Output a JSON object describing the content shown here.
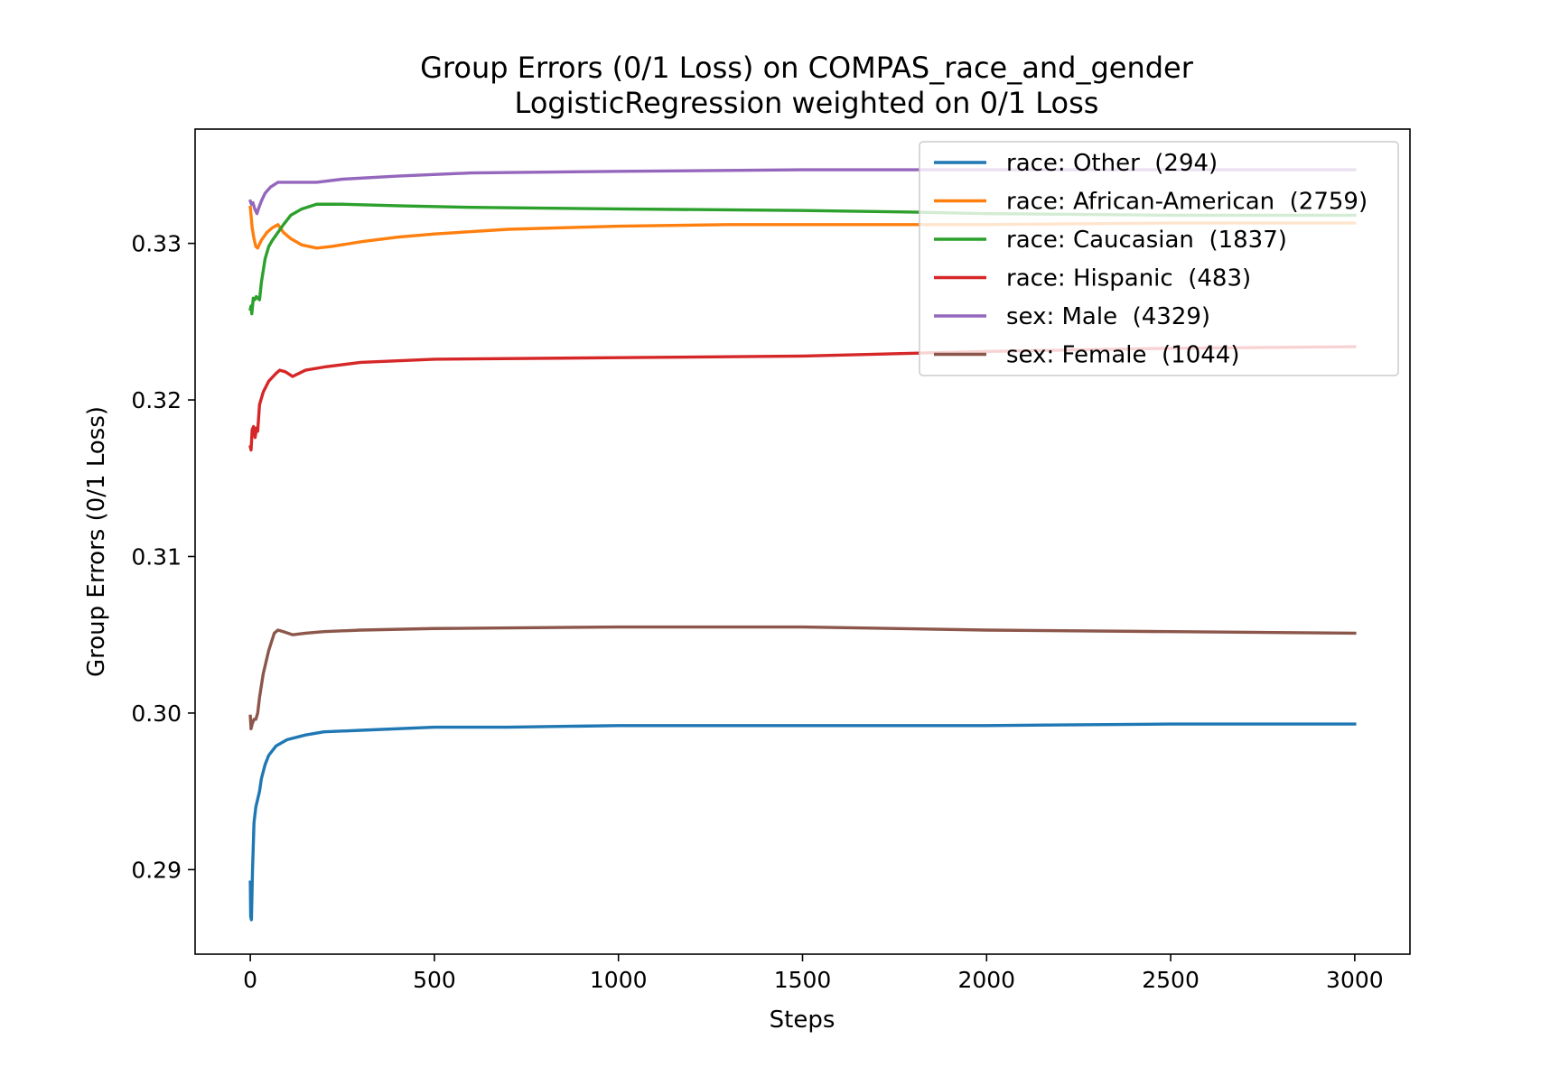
{
  "chart_data": {
    "type": "line",
    "title": "Group Errors (0/1 Loss) on COMPAS_race_and_gender",
    "subtitle": "LogisticRegression weighted on 0/1 Loss",
    "xlabel": "Steps",
    "ylabel": "Group Errors (0/1 Loss)",
    "xlim": [
      -150,
      3150
    ],
    "ylim": [
      0.2846,
      0.3373
    ],
    "x_ticks": [
      0,
      500,
      1000,
      1500,
      2000,
      2500,
      3000
    ],
    "x_tick_labels": [
      "0",
      "500",
      "1000",
      "1500",
      "2000",
      "2500",
      "3000"
    ],
    "y_ticks": [
      0.29,
      0.3,
      0.31,
      0.32,
      0.33
    ],
    "y_tick_labels": [
      "0.29",
      "0.30",
      "0.31",
      "0.32",
      "0.33"
    ],
    "grid": false,
    "legend_position": "upper-right",
    "series": [
      {
        "name": "race: Other  (294)",
        "color": "#1f77b4",
        "points": [
          [
            0,
            0.2892
          ],
          [
            1,
            0.287
          ],
          [
            3,
            0.2868
          ],
          [
            6,
            0.29
          ],
          [
            10,
            0.293
          ],
          [
            15,
            0.294
          ],
          [
            20,
            0.2945
          ],
          [
            25,
            0.295
          ],
          [
            30,
            0.2958
          ],
          [
            40,
            0.2967
          ],
          [
            50,
            0.2973
          ],
          [
            70,
            0.2979
          ],
          [
            100,
            0.2983
          ],
          [
            150,
            0.2986
          ],
          [
            200,
            0.2988
          ],
          [
            300,
            0.2989
          ],
          [
            500,
            0.2991
          ],
          [
            700,
            0.2991
          ],
          [
            1000,
            0.2992
          ],
          [
            1500,
            0.2992
          ],
          [
            2000,
            0.2992
          ],
          [
            2500,
            0.2993
          ],
          [
            3000,
            0.2993
          ]
        ]
      },
      {
        "name": "race: African-American  (2759)",
        "color": "#ff7f0e",
        "points": [
          [
            0,
            0.3323
          ],
          [
            5,
            0.331
          ],
          [
            10,
            0.3303
          ],
          [
            15,
            0.3298
          ],
          [
            20,
            0.3297
          ],
          [
            30,
            0.3302
          ],
          [
            45,
            0.3307
          ],
          [
            60,
            0.331
          ],
          [
            75,
            0.3312
          ],
          [
            90,
            0.3307
          ],
          [
            110,
            0.3303
          ],
          [
            140,
            0.3299
          ],
          [
            180,
            0.3297
          ],
          [
            220,
            0.3298
          ],
          [
            300,
            0.3301
          ],
          [
            400,
            0.3304
          ],
          [
            500,
            0.3306
          ],
          [
            700,
            0.3309
          ],
          [
            1000,
            0.3311
          ],
          [
            1300,
            0.3312
          ],
          [
            1500,
            0.3312
          ],
          [
            2000,
            0.3312
          ],
          [
            2500,
            0.3313
          ],
          [
            3000,
            0.3313
          ]
        ]
      },
      {
        "name": "race: Caucasian  (1837)",
        "color": "#2ca02c",
        "points": [
          [
            0,
            0.3258
          ],
          [
            2,
            0.326
          ],
          [
            4,
            0.3255
          ],
          [
            8,
            0.3265
          ],
          [
            12,
            0.3264
          ],
          [
            16,
            0.3266
          ],
          [
            20,
            0.3265
          ],
          [
            25,
            0.3264
          ],
          [
            30,
            0.3275
          ],
          [
            40,
            0.329
          ],
          [
            50,
            0.3298
          ],
          [
            60,
            0.3302
          ],
          [
            75,
            0.3307
          ],
          [
            90,
            0.3312
          ],
          [
            110,
            0.3318
          ],
          [
            140,
            0.3322
          ],
          [
            180,
            0.3325
          ],
          [
            250,
            0.3325
          ],
          [
            400,
            0.3324
          ],
          [
            600,
            0.3323
          ],
          [
            1000,
            0.3322
          ],
          [
            1500,
            0.3321
          ],
          [
            1800,
            0.332
          ],
          [
            2000,
            0.3319
          ],
          [
            2500,
            0.3318
          ],
          [
            3000,
            0.3318
          ]
        ]
      },
      {
        "name": "race: Hispanic  (483)",
        "color": "#d62728",
        "points": [
          [
            0,
            0.317
          ],
          [
            2,
            0.3168
          ],
          [
            5,
            0.3181
          ],
          [
            9,
            0.3183
          ],
          [
            13,
            0.3176
          ],
          [
            17,
            0.3182
          ],
          [
            20,
            0.318
          ],
          [
            25,
            0.3197
          ],
          [
            35,
            0.3205
          ],
          [
            50,
            0.3212
          ],
          [
            70,
            0.3217
          ],
          [
            80,
            0.3219
          ],
          [
            95,
            0.3218
          ],
          [
            115,
            0.3215
          ],
          [
            150,
            0.3219
          ],
          [
            200,
            0.3221
          ],
          [
            300,
            0.3224
          ],
          [
            500,
            0.3226
          ],
          [
            1000,
            0.3227
          ],
          [
            1500,
            0.3228
          ],
          [
            2000,
            0.3231
          ],
          [
            2500,
            0.3233
          ],
          [
            3000,
            0.3234
          ]
        ]
      },
      {
        "name": "sex: Male  (4329)",
        "color": "#9467bd",
        "points": [
          [
            0,
            0.3327
          ],
          [
            3,
            0.3325
          ],
          [
            7,
            0.3326
          ],
          [
            12,
            0.3322
          ],
          [
            18,
            0.3319
          ],
          [
            22,
            0.3322
          ],
          [
            30,
            0.3327
          ],
          [
            40,
            0.3332
          ],
          [
            55,
            0.3336
          ],
          [
            75,
            0.3339
          ],
          [
            100,
            0.3339
          ],
          [
            180,
            0.3339
          ],
          [
            250,
            0.3341
          ],
          [
            400,
            0.3343
          ],
          [
            600,
            0.3345
          ],
          [
            1000,
            0.3346
          ],
          [
            1500,
            0.3347
          ],
          [
            2000,
            0.3347
          ],
          [
            2500,
            0.3347
          ],
          [
            3000,
            0.3347
          ]
        ]
      },
      {
        "name": "sex: Female  (1044)",
        "color": "#8c564b",
        "points": [
          [
            0,
            0.2998
          ],
          [
            2,
            0.299
          ],
          [
            5,
            0.2993
          ],
          [
            10,
            0.2996
          ],
          [
            15,
            0.2996
          ],
          [
            20,
            0.3
          ],
          [
            25,
            0.301
          ],
          [
            35,
            0.3025
          ],
          [
            50,
            0.304
          ],
          [
            65,
            0.3051
          ],
          [
            75,
            0.3053
          ],
          [
            90,
            0.3052
          ],
          [
            115,
            0.305
          ],
          [
            150,
            0.3051
          ],
          [
            200,
            0.3052
          ],
          [
            300,
            0.3053
          ],
          [
            500,
            0.3054
          ],
          [
            1000,
            0.3055
          ],
          [
            1500,
            0.3055
          ],
          [
            2000,
            0.3053
          ],
          [
            2500,
            0.3052
          ],
          [
            3000,
            0.3051
          ]
        ]
      }
    ]
  }
}
